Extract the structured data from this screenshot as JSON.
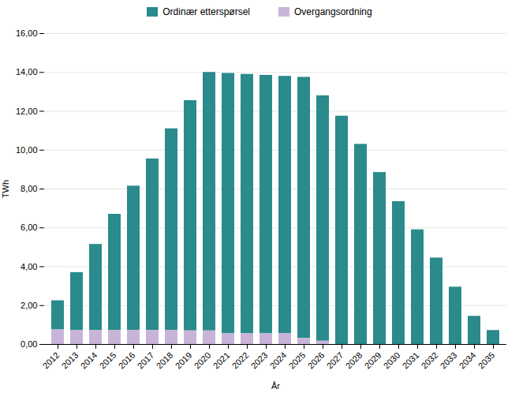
{
  "chart_data": {
    "type": "bar",
    "stacked": true,
    "xlabel": "År",
    "ylabel": "TWh",
    "categories": [
      "2012",
      "2013",
      "2014",
      "2015",
      "2016",
      "2017",
      "2018",
      "2019",
      "2020",
      "2021",
      "2022",
      "2023",
      "2024",
      "2025",
      "2026",
      "2027",
      "2028",
      "2029",
      "2030",
      "2031",
      "2032",
      "2033",
      "2034",
      "2035"
    ],
    "series": [
      {
        "name": "Ordinær etterspørsel",
        "color": "#2a8a8c",
        "values": [
          1.5,
          2.97,
          4.42,
          5.98,
          7.43,
          8.83,
          10.38,
          11.85,
          13.3,
          13.4,
          13.35,
          13.3,
          13.25,
          13.43,
          12.63,
          11.75,
          10.3,
          8.85,
          7.35,
          5.9,
          4.45,
          2.95,
          1.45,
          0.72
        ]
      },
      {
        "name": "Overgangsordning",
        "color": "#c8b4d8",
        "values": [
          0.75,
          0.73,
          0.73,
          0.72,
          0.72,
          0.72,
          0.72,
          0.7,
          0.7,
          0.55,
          0.55,
          0.55,
          0.55,
          0.32,
          0.17,
          0.0,
          0.0,
          0.0,
          0.0,
          0.0,
          0.0,
          0.0,
          0.0,
          0.0
        ]
      }
    ],
    "ylim": [
      0,
      16.0
    ],
    "yticks": [
      {
        "value": 0.0,
        "label": "0,00"
      },
      {
        "value": 2.0,
        "label": "2,00"
      },
      {
        "value": 4.0,
        "label": "4,00"
      },
      {
        "value": 6.0,
        "label": "6,00"
      },
      {
        "value": 8.0,
        "label": "8,00"
      },
      {
        "value": 10.0,
        "label": "10,00"
      },
      {
        "value": 12.0,
        "label": "12,00"
      },
      {
        "value": 14.0,
        "label": "14,00"
      },
      {
        "value": 16.0,
        "label": "16,00"
      }
    ],
    "grid": true,
    "legend": "top"
  }
}
